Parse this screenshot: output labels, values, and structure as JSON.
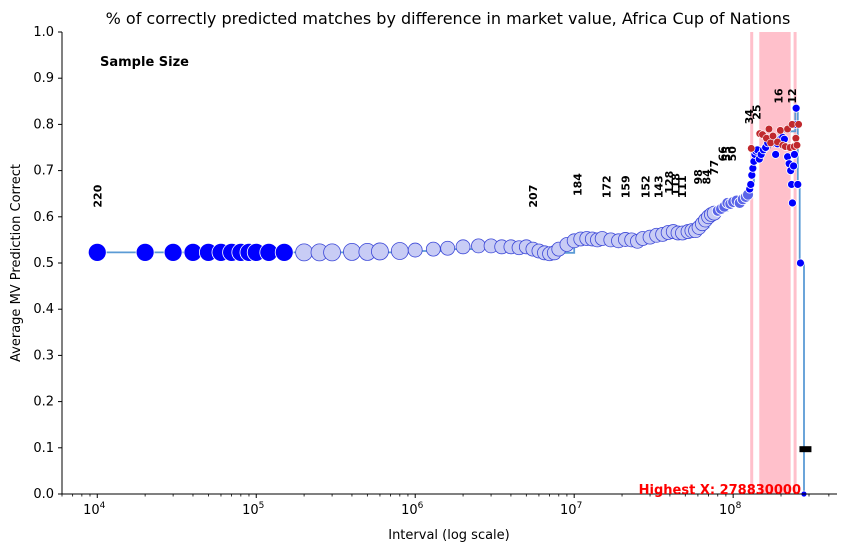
{
  "chart_data": {
    "type": "scatter",
    "title": "% of correctly predicted matches by difference in market value, Africa Cup of Nations",
    "xlabel": "Interval (log scale)",
    "ylabel": "Average MV Prediction Correct",
    "x_scale": "log",
    "xlim": [
      6000,
      450000000
    ],
    "ylim": [
      0,
      1
    ],
    "x_ticks": [
      {
        "value": 10000,
        "base": "10",
        "exp": "4"
      },
      {
        "value": 100000,
        "base": "10",
        "exp": "5"
      },
      {
        "value": 1000000,
        "base": "10",
        "exp": "6"
      },
      {
        "value": 10000000,
        "base": "10",
        "exp": "7"
      },
      {
        "value": 100000000,
        "base": "10",
        "exp": "8"
      }
    ],
    "y_ticks": [
      "0.0",
      "0.1",
      "0.2",
      "0.3",
      "0.4",
      "0.5",
      "0.6",
      "0.7",
      "0.8",
      "0.9",
      "1.0"
    ],
    "y_tick_values": [
      0,
      0.1,
      0.2,
      0.3,
      0.4,
      0.5,
      0.6,
      0.7,
      0.8,
      0.9,
      1.0
    ],
    "grid": false,
    "colors": {
      "line": "#5b9bd5",
      "point_blue": "#0000ff",
      "point_faded": "#c8ccf5",
      "point_red": "#c0282d",
      "highlight_band": "#ffc0cb",
      "highlight_text": "#ff0000"
    },
    "series": [
      {
        "points": [
          [
            10000,
            0.523
          ],
          [
            20000,
            0.523
          ],
          [
            30000,
            0.523
          ],
          [
            40000,
            0.523
          ],
          [
            50000,
            0.523
          ],
          [
            60000,
            0.523
          ],
          [
            70000,
            0.523
          ],
          [
            80000,
            0.523
          ],
          [
            90000,
            0.523
          ],
          [
            100000,
            0.523
          ],
          [
            120000,
            0.523
          ],
          [
            150000,
            0.523
          ],
          [
            200000,
            0.523
          ],
          [
            250000,
            0.523
          ],
          [
            300000,
            0.523
          ],
          [
            400000,
            0.524
          ],
          [
            500000,
            0.524
          ],
          [
            600000,
            0.525
          ],
          [
            800000,
            0.526
          ],
          [
            1000000,
            0.528
          ],
          [
            1300000,
            0.53
          ],
          [
            1600000,
            0.532
          ],
          [
            2000000,
            0.535
          ],
          [
            2500000,
            0.537
          ],
          [
            3000000,
            0.537
          ],
          [
            3500000,
            0.535
          ],
          [
            4000000,
            0.535
          ],
          [
            4500000,
            0.533
          ],
          [
            5000000,
            0.535
          ],
          [
            5500000,
            0.53
          ],
          [
            6000000,
            0.526
          ],
          [
            6500000,
            0.522
          ],
          [
            7000000,
            0.52
          ],
          [
            7500000,
            0.522
          ],
          [
            8000000,
            0.53
          ],
          [
            9000000,
            0.54
          ],
          [
            10000000,
            0.548
          ],
          [
            11000000,
            0.552
          ],
          [
            12000000,
            0.553
          ],
          [
            13000000,
            0.552
          ],
          [
            14000000,
            0.55
          ],
          [
            15000000,
            0.553
          ],
          [
            17000000,
            0.55
          ],
          [
            19000000,
            0.548
          ],
          [
            21000000,
            0.551
          ],
          [
            23000000,
            0.55
          ],
          [
            25000000,
            0.547
          ],
          [
            27000000,
            0.553
          ],
          [
            30000000,
            0.556
          ],
          [
            33000000,
            0.56
          ],
          [
            36000000,
            0.562
          ],
          [
            39000000,
            0.566
          ],
          [
            42000000,
            0.568
          ],
          [
            45000000,
            0.565
          ],
          [
            48000000,
            0.565
          ],
          [
            52000000,
            0.568
          ],
          [
            55000000,
            0.57
          ],
          [
            58000000,
            0.57
          ],
          [
            61000000,
            0.577
          ],
          [
            64000000,
            0.585
          ],
          [
            67000000,
            0.593
          ],
          [
            70000000,
            0.6
          ],
          [
            73000000,
            0.605
          ],
          [
            76000000,
            0.608
          ],
          [
            80000000,
            0.613
          ],
          [
            84000000,
            0.617
          ],
          [
            88000000,
            0.622
          ],
          [
            92000000,
            0.63
          ],
          [
            96000000,
            0.628
          ],
          [
            100000000,
            0.632
          ],
          [
            105000000,
            0.635
          ],
          [
            110000000,
            0.63
          ],
          [
            115000000,
            0.638
          ],
          [
            120000000,
            0.643
          ],
          [
            124000000,
            0.648
          ],
          [
            127000000,
            0.66
          ],
          [
            129000000,
            0.67
          ],
          [
            131000000,
            0.69
          ],
          [
            133000000,
            0.705
          ],
          [
            135000000,
            0.72
          ],
          [
            137000000,
            0.735
          ],
          [
            139000000,
            0.742
          ],
          [
            142000000,
            0.745
          ],
          [
            146000000,
            0.725
          ],
          [
            150000000,
            0.735
          ],
          [
            155000000,
            0.745
          ],
          [
            160000000,
            0.75
          ],
          [
            165000000,
            0.76
          ],
          [
            170000000,
            0.77
          ],
          [
            175000000,
            0.77
          ],
          [
            180000000,
            0.76
          ],
          [
            185000000,
            0.735
          ],
          [
            190000000,
            0.758
          ],
          [
            195000000,
            0.765
          ],
          [
            200000000,
            0.77
          ],
          [
            205000000,
            0.772
          ],
          [
            210000000,
            0.768
          ],
          [
            215000000,
            0.752
          ],
          [
            220000000,
            0.73
          ],
          [
            225000000,
            0.715
          ],
          [
            230000000,
            0.7
          ],
          [
            233000000,
            0.67
          ],
          [
            236000000,
            0.63
          ],
          [
            240000000,
            0.71
          ],
          [
            243000000,
            0.735
          ],
          [
            246000000,
            0.8
          ],
          [
            249000000,
            0.835
          ],
          [
            255000000,
            0.67
          ],
          [
            265000000,
            0.5
          ],
          [
            278830000,
            0.0
          ]
        ],
        "red_points": [
          [
            130000000,
            0.748
          ],
          [
            147000000,
            0.78
          ],
          [
            153000000,
            0.778
          ],
          [
            162000000,
            0.77
          ],
          [
            168000000,
            0.79
          ],
          [
            172000000,
            0.76
          ],
          [
            178000000,
            0.775
          ],
          [
            190000000,
            0.762
          ],
          [
            198000000,
            0.787
          ],
          [
            205000000,
            0.755
          ],
          [
            213000000,
            0.752
          ],
          [
            220000000,
            0.79
          ],
          [
            228000000,
            0.75
          ],
          [
            235000000,
            0.8
          ],
          [
            242000000,
            0.752
          ],
          [
            248000000,
            0.77
          ],
          [
            252000000,
            0.755
          ],
          [
            258000000,
            0.8
          ]
        ]
      }
    ],
    "step_line": [
      [
        10000,
        0.523
      ],
      [
        400000,
        0.523
      ],
      [
        800000,
        0.526
      ],
      [
        1500000,
        0.53
      ],
      [
        2500000,
        0.537
      ],
      [
        4000000,
        0.535
      ],
      [
        6000000,
        0.526
      ],
      [
        7500000,
        0.522
      ],
      [
        10000000,
        0.548
      ],
      [
        15000000,
        0.553
      ],
      [
        21000000,
        0.551
      ],
      [
        27000000,
        0.553
      ],
      [
        33000000,
        0.56
      ],
      [
        42000000,
        0.568
      ],
      [
        52000000,
        0.568
      ],
      [
        61000000,
        0.577
      ],
      [
        70000000,
        0.6
      ],
      [
        80000000,
        0.613
      ],
      [
        92000000,
        0.63
      ],
      [
        105000000,
        0.635
      ],
      [
        120000000,
        0.643
      ],
      [
        129000000,
        0.67
      ],
      [
        135000000,
        0.72
      ],
      [
        142000000,
        0.745
      ],
      [
        160000000,
        0.75
      ],
      [
        170000000,
        0.77
      ],
      [
        180000000,
        0.76
      ],
      [
        195000000,
        0.785
      ],
      [
        230000000,
        0.785
      ],
      [
        240000000,
        0.785
      ],
      [
        246000000,
        0.83
      ],
      [
        252000000,
        0.83
      ],
      [
        255000000,
        0.67
      ],
      [
        262000000,
        0.5
      ],
      [
        278830000,
        0.0
      ]
    ],
    "highlight_bands": [
      [
        128000000,
        133000000
      ],
      [
        146000000,
        230000000
      ],
      [
        240000000,
        250000000
      ]
    ],
    "sample_size_caption": "Sample Size",
    "sample_size_labels": [
      {
        "x": 10000,
        "y": 0.62,
        "text": "220"
      },
      {
        "x": 5500000,
        "y": 0.62,
        "text": "207"
      },
      {
        "x": 10500000,
        "y": 0.645,
        "text": "184"
      },
      {
        "x": 16000000,
        "y": 0.64,
        "text": "172"
      },
      {
        "x": 21000000,
        "y": 0.64,
        "text": "159"
      },
      {
        "x": 28000000,
        "y": 0.64,
        "text": "152"
      },
      {
        "x": 34000000,
        "y": 0.64,
        "text": "143"
      },
      {
        "x": 39500000,
        "y": 0.65,
        "text": "128"
      },
      {
        "x": 43500000,
        "y": 0.645,
        "text": "118"
      },
      {
        "x": 47500000,
        "y": 0.64,
        "text": "111"
      },
      {
        "x": 60000000,
        "y": 0.67,
        "text": "98"
      },
      {
        "x": 68000000,
        "y": 0.67,
        "text": "84"
      },
      {
        "x": 76000000,
        "y": 0.69,
        "text": "77"
      },
      {
        "x": 86000000,
        "y": 0.72,
        "text": "66"
      },
      {
        "x": 91000000,
        "y": 0.72,
        "text": "55"
      },
      {
        "x": 98000000,
        "y": 0.72,
        "text": "50"
      },
      {
        "x": 126000000,
        "y": 0.8,
        "text": "34"
      },
      {
        "x": 140000000,
        "y": 0.81,
        "text": "25"
      },
      {
        "x": 193000000,
        "y": 0.845,
        "text": "16"
      },
      {
        "x": 235000000,
        "y": 0.845,
        "text": "12"
      }
    ],
    "highest_label": "Highest X: 278830000",
    "small_marker": {
      "x": 265000000,
      "y": 0.097
    }
  }
}
